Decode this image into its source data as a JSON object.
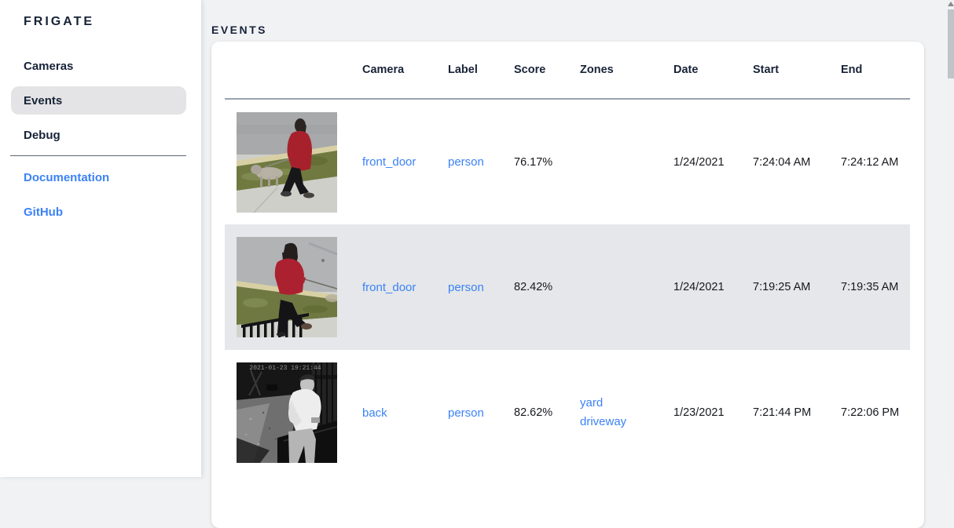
{
  "app_title": "FRIGATE",
  "sidebar": {
    "items": [
      {
        "label": "Cameras",
        "active": false
      },
      {
        "label": "Events",
        "active": true
      },
      {
        "label": "Debug",
        "active": false
      }
    ],
    "links": [
      {
        "label": "Documentation"
      },
      {
        "label": "GitHub"
      }
    ]
  },
  "page": {
    "title": "EVENTS"
  },
  "table": {
    "columns": [
      "",
      "Camera",
      "Label",
      "Score",
      "Zones",
      "Date",
      "Start",
      "End"
    ],
    "rows": [
      {
        "thumb": "red-coat-dog",
        "thumb_desc": "person in red coat walking small dog on sidewalk",
        "camera": "front_door",
        "label": "person",
        "score": "76.17%",
        "zones": [],
        "date": "1/24/2021",
        "start": "7:24:04 AM",
        "end": "7:24:12 AM",
        "highlighted": false
      },
      {
        "thumb": "red-hoodie-dog",
        "thumb_desc": "person in red hoodie walking dog past black railing",
        "camera": "front_door",
        "label": "person",
        "score": "82.42%",
        "zones": [],
        "date": "1/24/2021",
        "start": "7:19:25 AM",
        "end": "7:19:35 AM",
        "highlighted": true
      },
      {
        "thumb": "night-ir-person",
        "thumb_desc": "grayscale night view of man in white long-sleeve shirt",
        "overlay": "2021-01-23 19:21:44",
        "camera": "back",
        "label": "person",
        "score": "82.62%",
        "zones": [
          "yard",
          "driveway"
        ],
        "date": "1/23/2021",
        "start": "7:21:44 PM",
        "end": "7:22:06 PM",
        "highlighted": false
      }
    ]
  },
  "colors": {
    "accent_link": "#3b82f6",
    "text_dark": "#182338",
    "row_highlight": "#e5e7ea",
    "nav_active_bg": "#e4e4e6",
    "page_bg": "#f1f2f4"
  }
}
